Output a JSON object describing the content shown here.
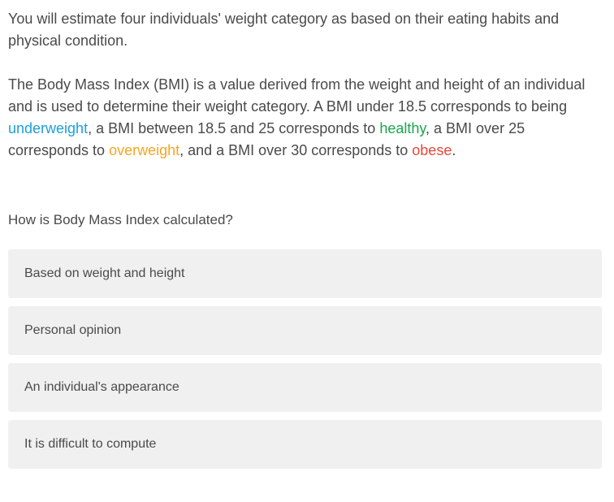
{
  "intro": "You will estimate four individuals' weight category as based on their eating habits and physical condition.",
  "bmi": {
    "part1": "The Body Mass Index (BMI) is a value derived from the weight and height of an individual and is used to determine their weight category. A BMI under 18.5 corresponds to being ",
    "underweight": "underweight",
    "part2": ", a BMI between 18.5 and 25 corresponds to ",
    "healthy": "healthy",
    "part3": ", a BMI over 25 corresponds to ",
    "overweight": "overweight",
    "part4": ", and a BMI over 30 corresponds to ",
    "obese": "obese",
    "part5": ".",
    "colors": {
      "underweight": "#1ba0d8",
      "healthy": "#1aa64b",
      "overweight": "#f5a623",
      "obese": "#e8473b"
    }
  },
  "question": "How is Body Mass Index calculated?",
  "options": [
    {
      "label": "Based on weight and height"
    },
    {
      "label": "Personal opinion"
    },
    {
      "label": "An individual's appearance"
    },
    {
      "label": "It is difficult to compute"
    }
  ]
}
